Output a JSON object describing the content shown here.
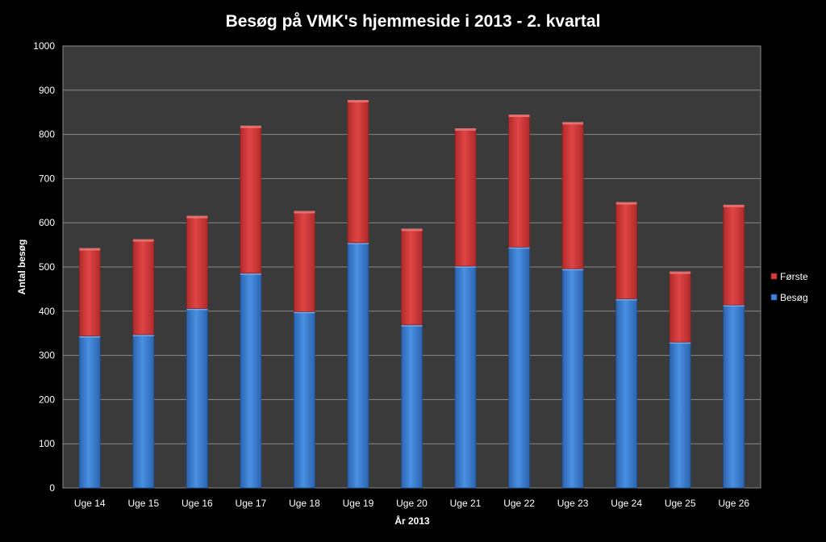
{
  "chart_data": {
    "type": "bar",
    "stacked": true,
    "title": "Besøg på  VMK's hjemmeside i 2013 - 2. kvartal",
    "xlabel": "År 2013",
    "ylabel": "Antal besøg",
    "categories": [
      "Uge 14",
      "Uge 15",
      "Uge 16",
      "Uge 17",
      "Uge 18",
      "Uge 19",
      "Uge 20",
      "Uge 21",
      "Uge 22",
      "Uge 23",
      "Uge 24",
      "Uge 25",
      "Uge 26"
    ],
    "series": [
      {
        "name": "Besøg",
        "color": "#3f83d6",
        "values": [
          344,
          347,
          406,
          486,
          399,
          555,
          369,
          502,
          545,
          496,
          428,
          330,
          414
        ]
      },
      {
        "name": "Første",
        "color": "#d73a3a",
        "values": [
          197,
          214,
          208,
          332,
          226,
          321,
          216,
          310,
          298,
          330,
          217,
          158,
          225
        ]
      }
    ],
    "ylim": [
      0,
      1000
    ],
    "yticks": [
      0,
      100,
      200,
      300,
      400,
      500,
      600,
      700,
      800,
      900,
      1000
    ],
    "grid": true,
    "legend_position": "right",
    "plot_background": "#3a3a3a",
    "background": "#000000"
  }
}
